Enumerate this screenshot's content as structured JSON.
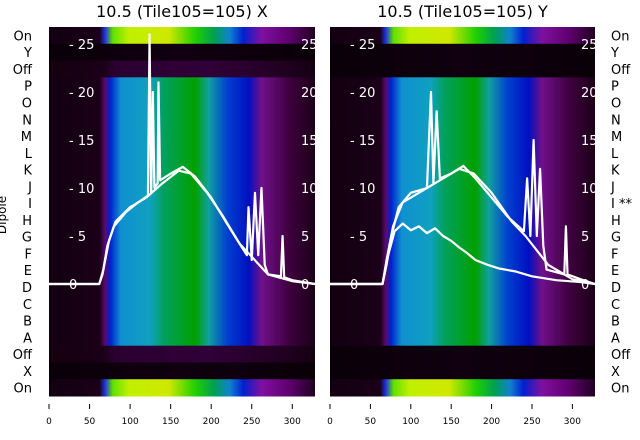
{
  "chart_data": [
    {
      "type": "heatmap",
      "title": "10.5 (Tile105=105) X",
      "ylabel": "Dipole",
      "row_labels": [
        "On",
        "Y",
        "Off",
        "P",
        "O",
        "N",
        "M",
        "L",
        "K",
        "J",
        "I",
        "H",
        "G",
        "F",
        "E",
        "D",
        "C",
        "B",
        "A",
        "Off",
        "X",
        "On"
      ],
      "row_levels": [
        1.0,
        0.0,
        0.15,
        0.75,
        0.75,
        0.75,
        0.75,
        0.75,
        0.75,
        0.75,
        0.75,
        0.75,
        0.75,
        0.75,
        0.75,
        0.75,
        0.75,
        0.75,
        0.75,
        0.15,
        0.0,
        1.0
      ],
      "xlim": [
        0,
        328
      ],
      "xticks": [
        0,
        50,
        100,
        150,
        200,
        250,
        300
      ],
      "inner_ylim": [
        0,
        25
      ],
      "inner_yticks": [
        0,
        5,
        10,
        15,
        20,
        25
      ],
      "series": [
        {
          "name": "trace-1",
          "points": [
            [
              0,
              0
            ],
            [
              62,
              0
            ],
            [
              66,
              1
            ],
            [
              72,
              4
            ],
            [
              80,
              6
            ],
            [
              95,
              7.5
            ],
            [
              110,
              8.5
            ],
            [
              122,
              9.2
            ],
            [
              124,
              26
            ],
            [
              126,
              9.5
            ],
            [
              128,
              20
            ],
            [
              130,
              10
            ],
            [
              134,
              10.5
            ],
            [
              135,
              21
            ],
            [
              137,
              10.8
            ],
            [
              150,
              11.5
            ],
            [
              165,
              12.2
            ],
            [
              180,
              11.2
            ],
            [
              200,
              9
            ],
            [
              220,
              6.2
            ],
            [
              238,
              3.8
            ],
            [
              244,
              3
            ],
            [
              246,
              8
            ],
            [
              250,
              2.5
            ],
            [
              254,
              9.5
            ],
            [
              258,
              3
            ],
            [
              262,
              10
            ],
            [
              266,
              2
            ],
            [
              270,
              1
            ],
            [
              286,
              0.8
            ],
            [
              288,
              5
            ],
            [
              290,
              0.7
            ],
            [
              300,
              0.4
            ],
            [
              328,
              0
            ]
          ]
        },
        {
          "name": "trace-2",
          "points": [
            [
              0,
              0
            ],
            [
              62,
              0
            ],
            [
              67,
              1.5
            ],
            [
              74,
              4.5
            ],
            [
              82,
              6.5
            ],
            [
              100,
              8
            ],
            [
              120,
              9
            ],
            [
              140,
              10.5
            ],
            [
              160,
              11.8
            ],
            [
              175,
              11.5
            ],
            [
              195,
              9.5
            ],
            [
              215,
              7
            ],
            [
              235,
              4.2
            ],
            [
              245,
              3.3
            ],
            [
              270,
              1
            ],
            [
              300,
              0.3
            ],
            [
              328,
              0
            ]
          ]
        }
      ]
    },
    {
      "type": "heatmap",
      "title": "10.5 (Tile105=105) Y",
      "row_labels": [
        "On",
        "Y",
        "Off",
        "P",
        "O",
        "N",
        "M",
        "L",
        "K",
        "J",
        "I **",
        "H",
        "G",
        "F",
        "E",
        "D",
        "C",
        "B",
        "A",
        "Off",
        "X",
        "On"
      ],
      "row_levels": [
        1.0,
        0.0,
        0.0,
        0.75,
        0.75,
        0.75,
        0.75,
        0.75,
        0.75,
        0.75,
        0.7,
        0.75,
        0.75,
        0.75,
        0.75,
        0.75,
        0.75,
        0.75,
        0.75,
        0.0,
        0.0,
        1.0
      ],
      "xlim": [
        0,
        328
      ],
      "xticks": [
        0,
        50,
        100,
        150,
        200,
        250,
        300
      ],
      "inner_ylim": [
        0,
        25
      ],
      "inner_yticks": [
        0,
        5,
        10,
        15,
        20,
        25
      ],
      "series": [
        {
          "name": "trace-1",
          "points": [
            [
              0,
              0
            ],
            [
              65,
              0
            ],
            [
              70,
              2
            ],
            [
              76,
              5
            ],
            [
              85,
              8
            ],
            [
              100,
              9.5
            ],
            [
              120,
              10
            ],
            [
              125,
              20
            ],
            [
              128,
              10.5
            ],
            [
              132,
              18
            ],
            [
              136,
              11
            ],
            [
              150,
              11.5
            ],
            [
              165,
              12.3
            ],
            [
              180,
              11
            ],
            [
              200,
              9
            ],
            [
              220,
              7
            ],
            [
              240,
              5.5
            ],
            [
              244,
              11
            ],
            [
              248,
              5
            ],
            [
              252,
              15
            ],
            [
              256,
              5
            ],
            [
              260,
              12
            ],
            [
              264,
              4
            ],
            [
              268,
              1.5
            ],
            [
              290,
              1
            ],
            [
              292,
              6
            ],
            [
              294,
              1
            ],
            [
              310,
              0.5
            ],
            [
              328,
              0
            ]
          ]
        },
        {
          "name": "trace-2",
          "points": [
            [
              0,
              0
            ],
            [
              65,
              0
            ],
            [
              72,
              3
            ],
            [
              80,
              5.5
            ],
            [
              90,
              6.3
            ],
            [
              100,
              5.6
            ],
            [
              110,
              6
            ],
            [
              120,
              5.3
            ],
            [
              130,
              5.8
            ],
            [
              140,
              5
            ],
            [
              150,
              4.5
            ],
            [
              160,
              3.8
            ],
            [
              170,
              3.2
            ],
            [
              180,
              2.5
            ],
            [
              195,
              2
            ],
            [
              210,
              1.6
            ],
            [
              230,
              1.3
            ],
            [
              250,
              0.8
            ],
            [
              280,
              0.4
            ],
            [
              310,
              0.2
            ],
            [
              328,
              0
            ]
          ]
        },
        {
          "name": "trace-3",
          "points": [
            [
              0,
              0
            ],
            [
              65,
              0
            ],
            [
              70,
              2.5
            ],
            [
              78,
              6
            ],
            [
              90,
              8.5
            ],
            [
              110,
              9.5
            ],
            [
              140,
              11
            ],
            [
              160,
              12
            ],
            [
              178,
              11.5
            ],
            [
              200,
              9.5
            ],
            [
              225,
              6.5
            ],
            [
              242,
              5
            ],
            [
              270,
              2
            ],
            [
              300,
              0.5
            ],
            [
              328,
              0
            ]
          ]
        }
      ]
    }
  ]
}
